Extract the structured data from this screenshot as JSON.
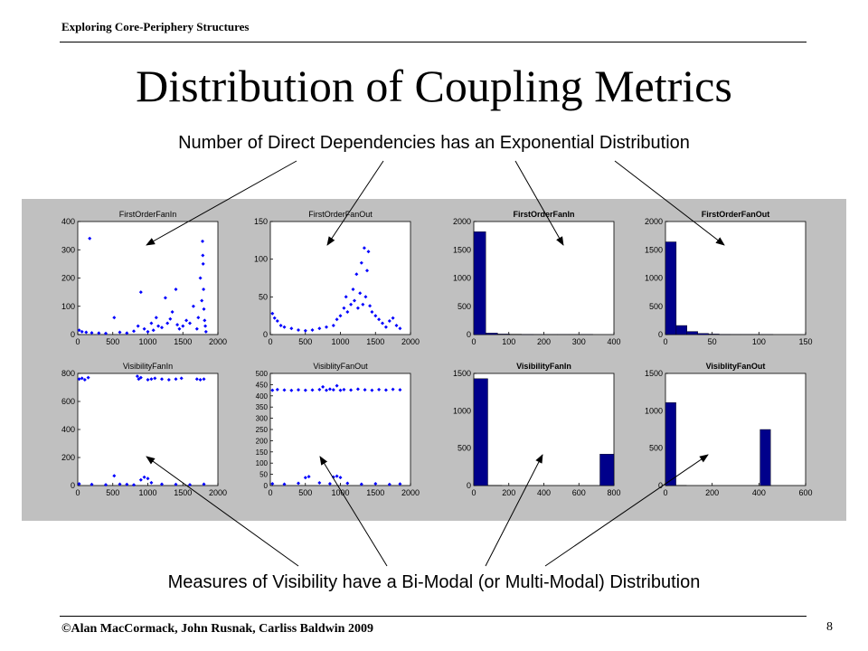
{
  "header": {
    "title": "Exploring Core-Periphery Structures"
  },
  "slide": {
    "title": "Distribution of Coupling Metrics",
    "top_caption": "Number of Direct Dependencies has an Exponential Distribution",
    "bottom_caption": "Measures of Visibility have a Bi-Modal (or Multi-Modal) Distribution"
  },
  "footer": {
    "copyright": "©Alan MacCormack, John Rusnak, Carliss Baldwin 2009",
    "page": "8"
  },
  "colors": {
    "panel_bg": "#c0c0c0",
    "marker": "#0000ff",
    "bar_fill": "#00008b"
  },
  "chart_data": [
    {
      "type": "scatter",
      "title": "FirstOrderFanIn",
      "xlim": [
        0,
        2000
      ],
      "ylim": [
        0,
        400
      ],
      "xticks": [
        0,
        500,
        1000,
        1500,
        2000
      ],
      "yticks": [
        0,
        100,
        200,
        300,
        400
      ],
      "series": [
        {
          "points": [
            [
              170,
              340
            ],
            [
              20,
              15
            ],
            [
              60,
              10
            ],
            [
              120,
              8
            ],
            [
              200,
              6
            ],
            [
              300,
              5
            ],
            [
              400,
              4
            ],
            [
              520,
              60
            ],
            [
              600,
              8
            ],
            [
              700,
              5
            ],
            [
              800,
              12
            ],
            [
              860,
              30
            ],
            [
              900,
              150
            ],
            [
              950,
              20
            ],
            [
              1000,
              10
            ],
            [
              1050,
              40
            ],
            [
              1080,
              15
            ],
            [
              1120,
              60
            ],
            [
              1150,
              30
            ],
            [
              1200,
              25
            ],
            [
              1250,
              130
            ],
            [
              1280,
              40
            ],
            [
              1320,
              55
            ],
            [
              1350,
              80
            ],
            [
              1400,
              160
            ],
            [
              1420,
              35
            ],
            [
              1450,
              20
            ],
            [
              1500,
              30
            ],
            [
              1550,
              50
            ],
            [
              1600,
              40
            ],
            [
              1650,
              100
            ],
            [
              1700,
              20
            ],
            [
              1720,
              60
            ],
            [
              1750,
              200
            ],
            [
              1770,
              120
            ],
            [
              1780,
              330
            ],
            [
              1785,
              280
            ],
            [
              1790,
              250
            ],
            [
              1795,
              160
            ],
            [
              1800,
              90
            ],
            [
              1810,
              50
            ],
            [
              1820,
              30
            ],
            [
              1830,
              10
            ]
          ]
        }
      ]
    },
    {
      "type": "scatter",
      "title": "FirstOrderFanOut",
      "xlim": [
        0,
        2000
      ],
      "ylim": [
        0,
        150
      ],
      "xticks": [
        0,
        500,
        1000,
        1500,
        2000
      ],
      "yticks": [
        0,
        50,
        100,
        150
      ],
      "series": [
        {
          "points": [
            [
              30,
              28
            ],
            [
              60,
              22
            ],
            [
              100,
              18
            ],
            [
              150,
              12
            ],
            [
              200,
              10
            ],
            [
              300,
              8
            ],
            [
              400,
              6
            ],
            [
              500,
              5
            ],
            [
              600,
              6
            ],
            [
              700,
              8
            ],
            [
              800,
              10
            ],
            [
              900,
              12
            ],
            [
              950,
              20
            ],
            [
              1000,
              25
            ],
            [
              1050,
              35
            ],
            [
              1080,
              50
            ],
            [
              1100,
              30
            ],
            [
              1150,
              40
            ],
            [
              1180,
              60
            ],
            [
              1200,
              45
            ],
            [
              1230,
              80
            ],
            [
              1250,
              35
            ],
            [
              1280,
              55
            ],
            [
              1300,
              95
            ],
            [
              1320,
              40
            ],
            [
              1340,
              115
            ],
            [
              1360,
              50
            ],
            [
              1380,
              85
            ],
            [
              1400,
              110
            ],
            [
              1420,
              38
            ],
            [
              1450,
              30
            ],
            [
              1500,
              25
            ],
            [
              1550,
              20
            ],
            [
              1600,
              15
            ],
            [
              1650,
              10
            ],
            [
              1700,
              18
            ],
            [
              1750,
              22
            ],
            [
              1800,
              12
            ],
            [
              1850,
              8
            ]
          ]
        }
      ]
    },
    {
      "type": "bar",
      "title": "FirstOrderFanIn",
      "xlim": [
        0,
        400
      ],
      "ylim": [
        0,
        2000
      ],
      "xticks": [
        0,
        100,
        200,
        300,
        400
      ],
      "yticks": [
        0,
        500,
        1000,
        1500,
        2000
      ],
      "bin_width": 34,
      "bins": [
        0,
        34,
        68,
        102,
        136,
        170,
        204,
        238,
        272,
        306
      ],
      "values": [
        1820,
        25,
        10,
        6,
        4,
        2,
        2,
        1,
        2,
        3
      ]
    },
    {
      "type": "bar",
      "title": "FirstOrderFanOut",
      "xlim": [
        0,
        150
      ],
      "ylim": [
        0,
        2000
      ],
      "xticks": [
        0,
        50,
        100,
        150
      ],
      "yticks": [
        0,
        500,
        1000,
        1500,
        2000
      ],
      "bin_width": 11.5,
      "bins": [
        0,
        11.5,
        23,
        34.5,
        46,
        57.5,
        69,
        80.5,
        92,
        103.5
      ],
      "values": [
        1640,
        160,
        55,
        20,
        10,
        4,
        2,
        1,
        1,
        1
      ]
    },
    {
      "type": "scatter",
      "title": "VisibilityFanIn",
      "xlim": [
        0,
        2000
      ],
      "ylim": [
        0,
        800
      ],
      "xticks": [
        0,
        500,
        1000,
        1500,
        2000
      ],
      "yticks": [
        0,
        200,
        400,
        600,
        800
      ],
      "series": [
        {
          "points": [
            [
              20,
              760
            ],
            [
              60,
              765
            ],
            [
              100,
              755
            ],
            [
              150,
              770
            ],
            [
              20,
              12
            ],
            [
              200,
              8
            ],
            [
              400,
              6
            ],
            [
              600,
              10
            ],
            [
              700,
              8
            ],
            [
              800,
              5
            ],
            [
              850,
              780
            ],
            [
              870,
              760
            ],
            [
              900,
              770
            ],
            [
              1000,
              755
            ],
            [
              1050,
              760
            ],
            [
              1100,
              765
            ],
            [
              1200,
              760
            ],
            [
              1300,
              755
            ],
            [
              1400,
              760
            ],
            [
              1480,
              765
            ],
            [
              1700,
              760
            ],
            [
              1750,
              755
            ],
            [
              1800,
              760
            ],
            [
              520,
              70
            ],
            [
              900,
              40
            ],
            [
              950,
              60
            ],
            [
              1000,
              50
            ],
            [
              1050,
              20
            ],
            [
              1200,
              10
            ],
            [
              1400,
              8
            ],
            [
              1600,
              6
            ],
            [
              1800,
              10
            ]
          ]
        }
      ]
    },
    {
      "type": "scatter",
      "title": "VisiblityFanOut",
      "xlim": [
        0,
        2000
      ],
      "ylim": [
        0,
        500
      ],
      "xticks": [
        0,
        500,
        1000,
        1500,
        2000
      ],
      "yticks": [
        0,
        50,
        100,
        150,
        200,
        250,
        300,
        350,
        400,
        450,
        500
      ],
      "series": [
        {
          "points": [
            [
              30,
              425
            ],
            [
              100,
              428
            ],
            [
              200,
              426
            ],
            [
              300,
              424
            ],
            [
              400,
              427
            ],
            [
              500,
              425
            ],
            [
              600,
              426
            ],
            [
              700,
              428
            ],
            [
              750,
              440
            ],
            [
              800,
              425
            ],
            [
              850,
              430
            ],
            [
              900,
              427
            ],
            [
              950,
              445
            ],
            [
              1000,
              425
            ],
            [
              1050,
              428
            ],
            [
              1150,
              426
            ],
            [
              1250,
              430
            ],
            [
              1350,
              427
            ],
            [
              1450,
              425
            ],
            [
              1550,
              428
            ],
            [
              1650,
              426
            ],
            [
              1750,
              429
            ],
            [
              1850,
              427
            ],
            [
              30,
              8
            ],
            [
              200,
              6
            ],
            [
              400,
              10
            ],
            [
              500,
              35
            ],
            [
              550,
              40
            ],
            [
              700,
              12
            ],
            [
              850,
              8
            ],
            [
              900,
              38
            ],
            [
              950,
              42
            ],
            [
              1000,
              36
            ],
            [
              1100,
              10
            ],
            [
              1300,
              6
            ],
            [
              1500,
              8
            ],
            [
              1700,
              5
            ],
            [
              1850,
              7
            ]
          ]
        }
      ]
    },
    {
      "type": "bar",
      "title": "VisibilityFanIn",
      "xlim": [
        0,
        800
      ],
      "ylim": [
        0,
        1500
      ],
      "xticks": [
        0,
        200,
        400,
        600,
        800
      ],
      "yticks": [
        0,
        500,
        1000,
        1500
      ],
      "bin_width": 80,
      "bins": [
        0,
        80,
        160,
        240,
        320,
        400,
        480,
        560,
        640,
        720
      ],
      "values": [
        1430,
        2,
        0,
        0,
        0,
        0,
        0,
        0,
        0,
        420
      ]
    },
    {
      "type": "bar",
      "title": "VisiblityFanOut",
      "xlim": [
        0,
        600
      ],
      "ylim": [
        0,
        1500
      ],
      "xticks": [
        0,
        200,
        400,
        600
      ],
      "yticks": [
        0,
        500,
        1000,
        1500
      ],
      "bin_width": 45,
      "bins": [
        0,
        45,
        90,
        135,
        180,
        225,
        270,
        315,
        360,
        405
      ],
      "values": [
        1110,
        3,
        0,
        0,
        0,
        0,
        0,
        0,
        0,
        750
      ]
    }
  ]
}
